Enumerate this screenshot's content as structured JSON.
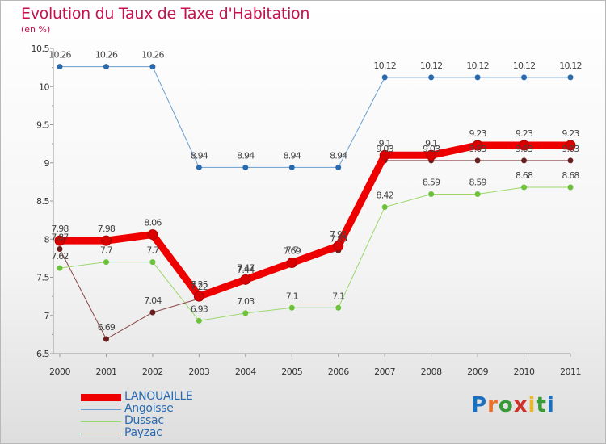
{
  "title": "Evolution du Taux de Taxe d'Habitation",
  "subtitle": "(en %)",
  "logo": {
    "text": "Proxiti",
    "letter_colors": [
      "#1a6fbf",
      "#e8702a",
      "#3a9a3a",
      "#d0302a",
      "#e8b82a",
      "#3a9a3a",
      "#1a6fbf"
    ]
  },
  "chart_data": {
    "type": "line",
    "title": "Evolution du Taux de Taxe d'Habitation",
    "ylabel": "(en %)",
    "xlabel": "",
    "ylim": [
      6.5,
      10.5
    ],
    "yticks": [
      "6.5",
      "7",
      "7.5",
      "8",
      "8.5",
      "9",
      "9.5",
      "10",
      "10.5"
    ],
    "categories": [
      "2000",
      "2001",
      "2002",
      "2003",
      "2004",
      "2005",
      "2006",
      "2007",
      "2008",
      "2009",
      "2010",
      "2011"
    ],
    "series": [
      {
        "name": "Angoisse",
        "color": "#6a9ccf",
        "marker": "#2a6bb0",
        "width": 1,
        "values": [
          10.26,
          10.26,
          10.26,
          8.94,
          8.94,
          8.94,
          8.94,
          10.12,
          10.12,
          10.12,
          10.12,
          10.12
        ],
        "labels": [
          "10.26",
          "10.26",
          "10.26",
          "8.94",
          "8.94",
          "8.94",
          "8.94",
          "10.12",
          "10.12",
          "10.12",
          "10.12",
          "10.12"
        ]
      },
      {
        "name": "Dussac",
        "color": "#9ad86a",
        "marker": "#6cc23a",
        "width": 1,
        "values": [
          7.62,
          7.7,
          7.7,
          6.93,
          7.03,
          7.1,
          7.1,
          8.42,
          8.59,
          8.59,
          8.68,
          8.68
        ],
        "labels": [
          "7.62",
          "7.7",
          "7.7",
          "6.93",
          "7.03",
          "7.1",
          "7.1",
          "8.42",
          "8.59",
          "8.59",
          "8.68",
          "8.68"
        ]
      },
      {
        "name": "Payzac",
        "color": "#8a4444",
        "marker": "#6a1f1f",
        "width": 1,
        "values": [
          7.87,
          6.69,
          7.04,
          7.22,
          7.44,
          7.7,
          7.85,
          9.03,
          9.03,
          9.03,
          9.03,
          9.03
        ],
        "labels": [
          "7.87",
          "6.69",
          "7.04",
          "7.22",
          "7.44",
          "7.7",
          "7.85",
          "9.03",
          "9.03",
          "9.03",
          "9.03",
          "9.03"
        ]
      },
      {
        "name": "LANOUAILLE",
        "color": "#ee0000",
        "marker": "#d80000",
        "width": 9,
        "values": [
          7.98,
          7.98,
          8.06,
          7.25,
          7.47,
          7.69,
          7.91,
          9.1,
          9.1,
          9.23,
          9.23,
          9.23
        ],
        "labels": [
          "7.98",
          "7.98",
          "8.06",
          "7.25",
          "7.47",
          "7.69",
          "7.91",
          "9.1",
          "9.1",
          "9.23",
          "9.23",
          "9.23"
        ]
      }
    ],
    "legend": [
      "LANOUAILLE",
      "Angoisse",
      "Dussac",
      "Payzac"
    ],
    "legend_placement": "bottom-left"
  }
}
